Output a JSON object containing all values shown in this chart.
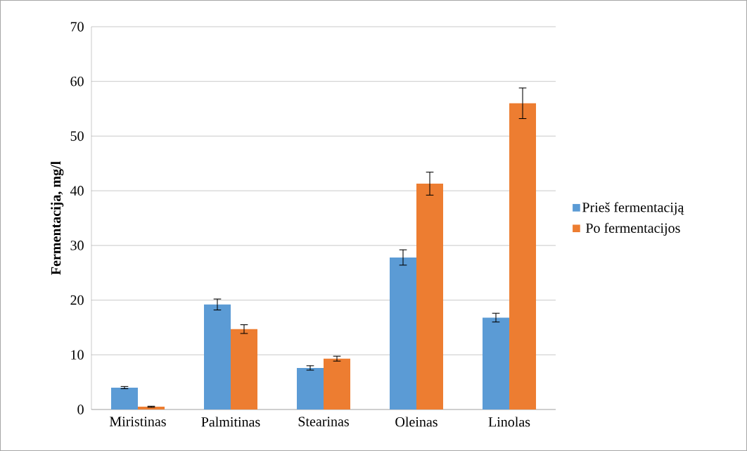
{
  "chart_data": {
    "type": "bar",
    "ylabel": "Fermentacija, mg/l",
    "categories": [
      "Miristinas",
      "Palmitinas",
      "Stearinas",
      "Oleinas",
      "Linolas"
    ],
    "series": [
      {
        "name": "Prieš fermentaciją",
        "color": "#5b9bd5",
        "values": [
          4.0,
          19.2,
          7.6,
          27.8,
          16.8
        ],
        "errors": [
          0.2,
          1.0,
          0.4,
          1.4,
          0.8
        ]
      },
      {
        "name": "Po fermentacijos",
        "color": "#ed7d31",
        "values": [
          0.5,
          14.7,
          9.3,
          41.3,
          56.0
        ],
        "errors": [
          0.1,
          0.8,
          0.45,
          2.1,
          2.8
        ]
      }
    ],
    "ylim": [
      0,
      70
    ],
    "yticks": [
      0,
      10,
      20,
      30,
      40,
      50,
      60,
      70
    ],
    "grid": "y",
    "legend": "right"
  }
}
